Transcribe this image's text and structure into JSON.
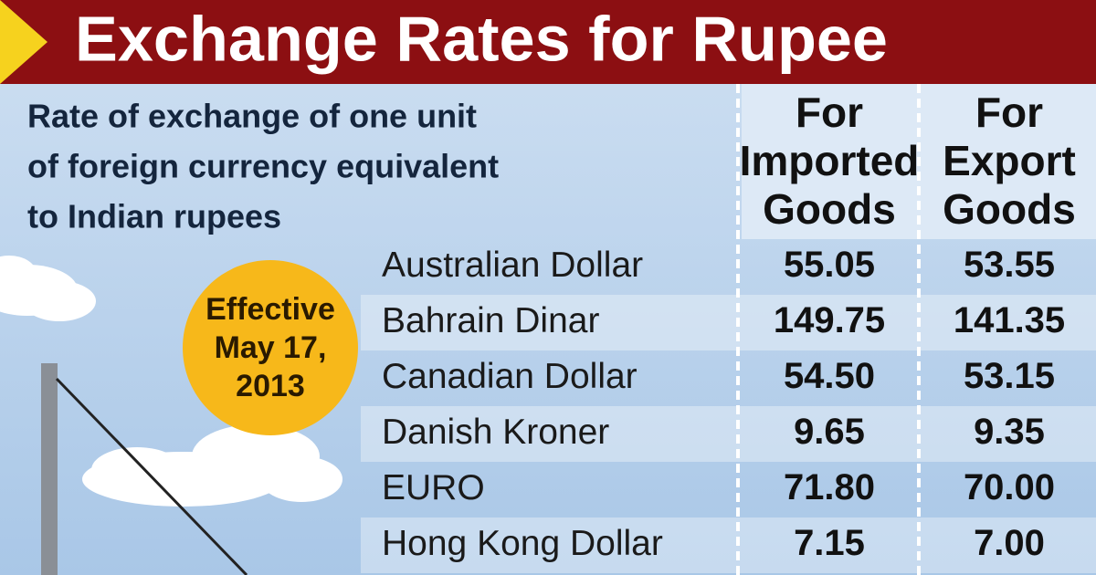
{
  "header": {
    "title": "Exchange Rates for Rupee"
  },
  "description": [
    "Rate of exchange of one unit",
    "of foreign currency equivalent",
    "to Indian rupees"
  ],
  "badge": [
    "Effective",
    "May 17,",
    "2013"
  ],
  "table": {
    "columns": [
      [
        "For",
        "Imported",
        "Goods"
      ],
      [
        "For",
        "Export",
        "Goods"
      ]
    ],
    "rows": [
      [
        "Australian Dollar",
        "55.05",
        "53.55"
      ],
      [
        "Bahrain Dinar",
        "149.75",
        "141.35"
      ],
      [
        "Canadian Dollar",
        "54.50",
        "53.15"
      ],
      [
        "Danish Kroner",
        "9.65",
        "9.35"
      ],
      [
        "EURO",
        "71.80",
        "70.00"
      ],
      [
        "Hong Kong Dollar",
        "7.15",
        "7.00"
      ]
    ]
  }
}
